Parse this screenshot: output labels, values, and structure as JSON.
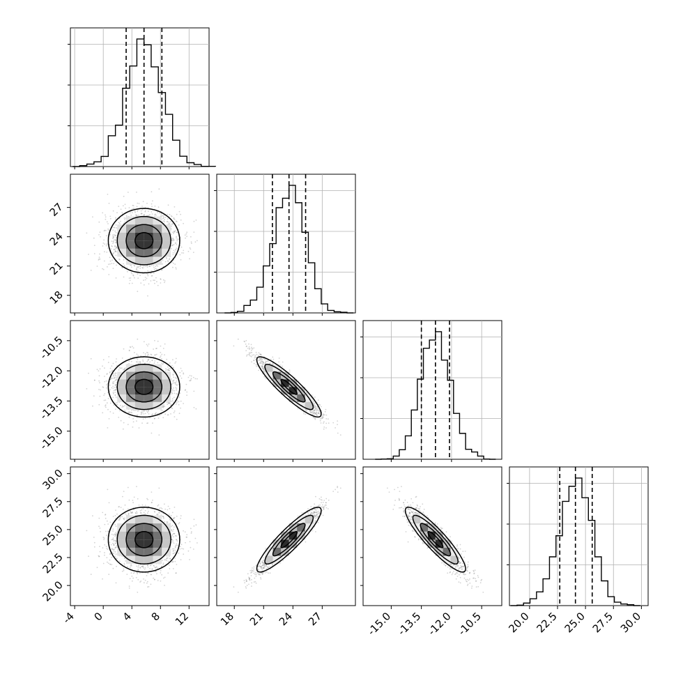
{
  "chart_data": {
    "type": "corner",
    "title": "",
    "colors": {
      "line": "#000000",
      "grid": "#b0b0b0",
      "scatter": "#7f7f7f",
      "background": "#ffffff"
    },
    "grid": true,
    "dimensions": [
      {
        "label": "",
        "range": [
          -4.6,
          14.8
        ],
        "ticks": [
          "-4",
          "0",
          "4",
          "8",
          "12"
        ],
        "tick_values": [
          -4,
          0,
          4,
          8,
          12
        ],
        "mean": 5.7,
        "sd": 2.5,
        "quantiles": [
          3.2,
          5.7,
          8.2
        ]
      },
      {
        "label": "",
        "range": [
          16.2,
          30.4
        ],
        "ticks": [
          "18",
          "21",
          "24",
          "27"
        ],
        "tick_values": [
          18,
          21,
          24,
          27
        ],
        "mean": 23.6,
        "sd": 1.65,
        "quantiles": [
          21.9,
          23.6,
          25.3
        ]
      },
      {
        "label": "",
        "range": [
          -16.4,
          -9.5
        ],
        "ticks": [
          "-15.0",
          "-13.5",
          "-12.0",
          "-10.5"
        ],
        "tick_values": [
          -15.0,
          -13.5,
          -12.0,
          -10.5
        ],
        "mean": -12.8,
        "sd": 0.75,
        "quantiles": [
          -13.5,
          -12.8,
          -12.1
        ]
      },
      {
        "label": "",
        "range": [
          18.2,
          30.6
        ],
        "ticks": [
          "20.0",
          "22.5",
          "25.0",
          "27.5",
          "30.0"
        ],
        "tick_values": [
          20.0,
          22.5,
          25.0,
          27.5,
          30.0
        ],
        "mean": 24.1,
        "sd": 1.45,
        "quantiles": [
          22.7,
          24.1,
          25.6
        ]
      }
    ],
    "correlations": [
      [
        1.0,
        0.0,
        0.0,
        0.0
      ],
      [
        0.0,
        1.0,
        -0.9,
        0.9
      ],
      [
        0.0,
        -0.9,
        1.0,
        -0.9
      ],
      [
        0.0,
        0.9,
        -0.9,
        1.0
      ]
    ],
    "histogram_bins": 20,
    "contour_levels": [
      0.5,
      1.0,
      1.5,
      2.0
    ]
  }
}
